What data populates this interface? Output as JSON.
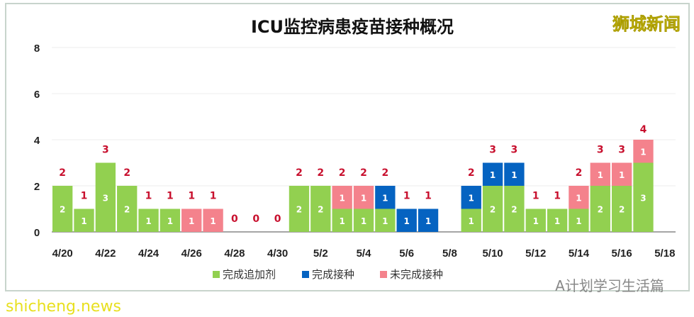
{
  "watermark_top": "狮城新闻",
  "watermark_bottom": "A计划学习生活篇",
  "site_watermark": "shicheng.news",
  "chart_data": {
    "type": "bar",
    "stacked": true,
    "title": "ICU监控病患疫苗接种概况",
    "xlabel": "",
    "ylabel": "",
    "ylim": [
      0,
      8
    ],
    "yticks": [
      0,
      2,
      4,
      6,
      8
    ],
    "grid": true,
    "legend_position": "bottom",
    "categories": [
      "4/20",
      "4/21",
      "4/22",
      "4/23",
      "4/24",
      "4/25",
      "4/26",
      "4/27",
      "4/28",
      "4/29",
      "4/30",
      "5/1",
      "5/2",
      "5/3",
      "5/4",
      "5/5",
      "5/6",
      "5/7",
      "5/8",
      "5/9",
      "5/10",
      "5/11",
      "5/12",
      "5/13",
      "5/14",
      "5/15",
      "5/16",
      "5/17",
      "5/18"
    ],
    "xtick_labels": [
      "4/20",
      "4/22",
      "4/24",
      "4/26",
      "4/28",
      "4/30",
      "5/2",
      "5/4",
      "5/6",
      "5/8",
      "5/10",
      "5/12",
      "5/14",
      "5/16",
      "5/18"
    ],
    "series": [
      {
        "name": "完成追加剂",
        "color": "#92d050",
        "values": [
          2,
          1,
          3,
          2,
          1,
          1,
          0,
          0,
          0,
          0,
          0,
          2,
          2,
          1,
          1,
          1,
          0,
          0,
          0,
          1,
          2,
          2,
          1,
          1,
          1,
          2,
          2,
          3,
          0
        ]
      },
      {
        "name": "完成接种",
        "color": "#0563c1",
        "values": [
          0,
          0,
          0,
          0,
          0,
          0,
          0,
          0,
          0,
          0,
          0,
          0,
          0,
          0,
          0,
          1,
          1,
          1,
          0,
          1,
          1,
          1,
          0,
          0,
          0,
          0,
          0,
          0,
          0
        ]
      },
      {
        "name": "未完成接种",
        "color": "#f4828c",
        "values": [
          0,
          0,
          0,
          0,
          0,
          0,
          1,
          1,
          0,
          0,
          0,
          0,
          0,
          1,
          1,
          0,
          0,
          0,
          0,
          0,
          0,
          0,
          0,
          0,
          1,
          1,
          1,
          1,
          0
        ]
      }
    ],
    "totals": [
      2,
      1,
      3,
      2,
      1,
      1,
      1,
      1,
      0,
      0,
      0,
      2,
      2,
      2,
      2,
      2,
      1,
      1,
      null,
      2,
      3,
      3,
      1,
      1,
      2,
      3,
      3,
      4,
      null
    ],
    "highlight_total": 4
  }
}
